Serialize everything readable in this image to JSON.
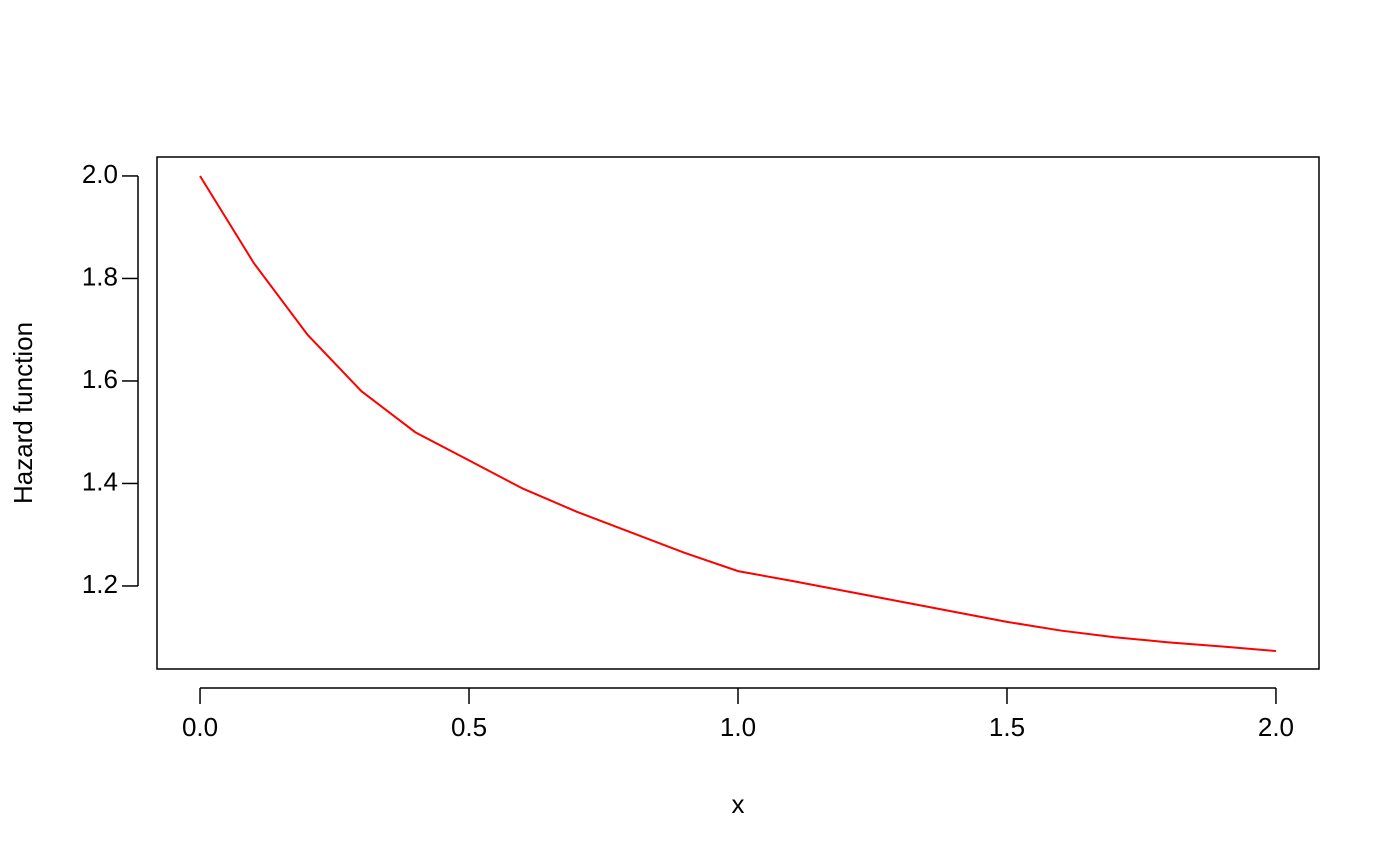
{
  "chart_data": {
    "type": "line",
    "xlabel": "x",
    "ylabel": "Hazard function",
    "x": [
      0,
      0.1,
      0.2,
      0.3,
      0.4,
      0.5,
      0.6,
      0.7,
      0.8,
      0.9,
      1.0,
      1.1,
      1.2,
      1.3,
      1.4,
      1.5,
      1.6,
      1.7,
      1.8,
      1.9,
      2.0
    ],
    "series": [
      {
        "color": "#ff0000",
        "values": [
          2.0,
          1.83,
          1.69,
          1.58,
          1.5,
          1.445,
          1.39,
          1.345,
          1.305,
          1.265,
          1.229,
          1.21,
          1.19,
          1.17,
          1.15,
          1.13,
          1.113,
          1.1,
          1.09,
          1.082,
          1.073
        ]
      }
    ],
    "xlim": [
      -0.08,
      2.08
    ],
    "xticks": [
      {
        "value": 0,
        "label": "0.0"
      },
      0.5,
      {
        "value": 1,
        "label": "1.0"
      },
      1.5,
      {
        "value": 2,
        "label": "2.0"
      }
    ],
    "ylim": [
      1.038,
      2.037
    ],
    "yticks": [
      1.2,
      1.4,
      1.6,
      1.8,
      {
        "value": 2,
        "label": "2.0"
      }
    ]
  }
}
